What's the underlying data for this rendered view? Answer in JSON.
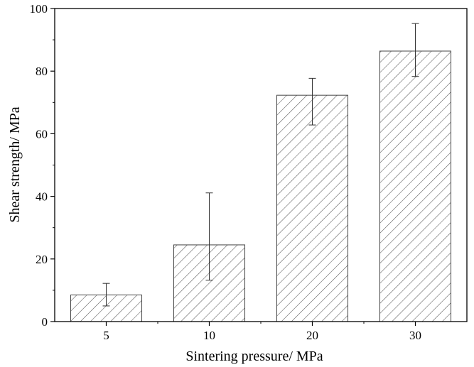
{
  "chart_data": {
    "type": "bar",
    "title": "",
    "xlabel": "Sintering pressure/ MPa",
    "ylabel": "Shear strength/ MPa",
    "categories": [
      "5",
      "10",
      "20",
      "30"
    ],
    "values": [
      8.5,
      24.5,
      72.3,
      86.4
    ],
    "error_low": [
      5.0,
      13.2,
      62.8,
      78.3
    ],
    "error_high": [
      12.2,
      41.1,
      77.7,
      95.2
    ],
    "ylim": [
      0,
      100
    ],
    "yticks": [
      "0",
      "20",
      "40",
      "60",
      "80",
      "100"
    ],
    "ytick_values": [
      0,
      20,
      40,
      60,
      80,
      100
    ],
    "grid": false,
    "bar_fill": "hatched",
    "bar_color": "#555555"
  }
}
